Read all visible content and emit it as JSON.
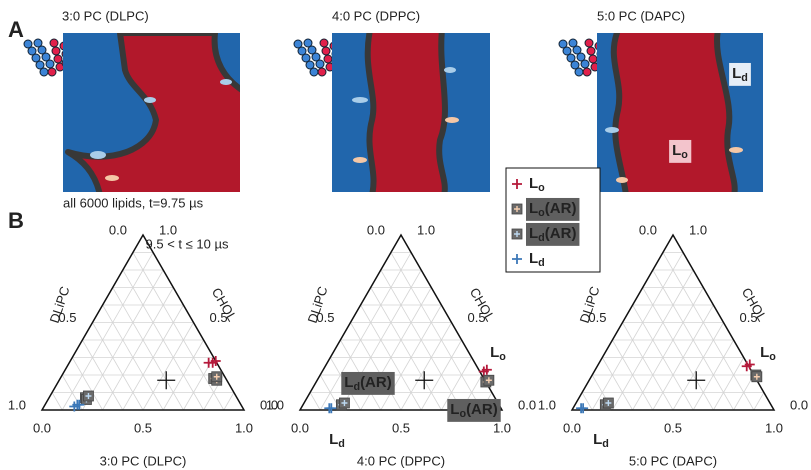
{
  "panels": {
    "a": "A",
    "b": "B"
  },
  "snapshots": [
    {
      "title": "3:0 PC (DLPC)",
      "caption": "all 6000 lipids, t=9.75 µs"
    },
    {
      "title": "4:0 PC (DPPC)"
    },
    {
      "title": "5:0 PC (DAPC)",
      "labels": [
        {
          "text": "Ld",
          "color": "#3c78b8",
          "background": "#e6eef7"
        },
        {
          "text": "Lo",
          "color": "#c2185b",
          "background": "#f3c4cc"
        }
      ]
    }
  ],
  "chart_data": [
    {
      "type": "ternary",
      "title": "3:0 PC (DLPC)",
      "left_label": "DLiPC",
      "right_label": "CHOL",
      "grid": true,
      "left_ticks": [
        {
          "value": 0,
          "label": "0.0"
        },
        {
          "value": 0.5,
          "label": "0.5"
        },
        {
          "value": 1,
          "label": "1.0"
        }
      ],
      "right_ticks": [
        {
          "value": 1,
          "label": "1.0"
        },
        {
          "value": 0.5,
          "label": "0.5"
        },
        {
          "value": 0,
          "label": "0.0"
        }
      ],
      "bottom_ticks": [
        {
          "value": 0,
          "label": "0.0"
        },
        {
          "value": 0.5,
          "label": "0.5"
        },
        {
          "value": 1,
          "label": "1.0"
        }
      ],
      "series": [
        {
          "name": "Lo",
          "color": "#b5193a",
          "marker": "plus",
          "pc": [
            0.69,
            0.71,
            0.72
          ],
          "chol": [
            0.27,
            0.27,
            0.28
          ]
        },
        {
          "name": "Lo(AR)",
          "color": "#f7cfb0",
          "marker": "box",
          "pc": [
            0.76,
            0.78,
            0.77
          ],
          "chol": [
            0.18,
            0.17,
            0.19
          ]
        },
        {
          "name": "Ld(AR)",
          "color": "#bcd8f0",
          "marker": "box",
          "pc": [
            0.18,
            0.19,
            0.19
          ],
          "chol": [
            0.07,
            0.06,
            0.08
          ]
        },
        {
          "name": "Ld",
          "color": "#3c78b8",
          "marker": "plus",
          "pc": [
            0.15,
            0.16,
            0.17
          ],
          "chol": [
            0.02,
            0.03,
            0.03
          ]
        }
      ],
      "reference": {
        "pc": 0.53,
        "chol": 0.17
      },
      "annotations": [
        {
          "text": "9.5 < t ≤ 10 µs",
          "style": "plain",
          "color": "#222"
        }
      ]
    },
    {
      "type": "ternary",
      "title": "4:0 PC (DPPC)",
      "grid": true,
      "left_ticks": [
        {
          "value": 0,
          "label": "0.0"
        },
        {
          "value": 0.5,
          "label": "0.5"
        },
        {
          "value": 1,
          "label": "1.0"
        }
      ],
      "right_ticks": [
        {
          "value": 1,
          "label": "1.0"
        },
        {
          "value": 0.5,
          "label": "0.5"
        },
        {
          "value": 0,
          "label": "0.0"
        }
      ],
      "bottom_ticks": [
        {
          "value": 0,
          "label": "0.0"
        },
        {
          "value": 0.5,
          "label": "0.5"
        },
        {
          "value": 1,
          "label": "1.0"
        }
      ],
      "left_label": "DLiPC",
      "right_label": "CHOL",
      "series": [
        {
          "name": "Lo",
          "color": "#b5193a",
          "marker": "plus",
          "pc": [
            0.8,
            0.81
          ],
          "chol": [
            0.22,
            0.23
          ]
        },
        {
          "name": "Lo(AR)",
          "color": "#f7cfb0",
          "marker": "box",
          "pc": [
            0.84,
            0.85
          ],
          "chol": [
            0.16,
            0.17
          ]
        },
        {
          "name": "Ld(AR)",
          "color": "#bcd8f0",
          "marker": "box",
          "pc": [
            0.19,
            0.2
          ],
          "chol": [
            0.03,
            0.04
          ]
        },
        {
          "name": "Ld",
          "color": "#3c78b8",
          "marker": "plus",
          "pc": [
            0.14,
            0.15
          ],
          "chol": [
            0.01,
            0.01
          ]
        }
      ],
      "reference": {
        "pc": 0.53,
        "chol": 0.17
      },
      "annotations": [
        {
          "text": "Lo",
          "style": "plain",
          "color": "#b5193a"
        },
        {
          "text": "Ld(AR)",
          "style": "box",
          "color": "#bcd8f0"
        },
        {
          "text": "Lo(AR)",
          "style": "box",
          "color": "#f7cfb0"
        },
        {
          "text": "Ld",
          "style": "plain",
          "color": "#3c78b8"
        }
      ]
    },
    {
      "type": "ternary",
      "title": "5:0 PC (DAPC)",
      "grid": true,
      "left_ticks": [
        {
          "value": 0,
          "label": "0.0"
        },
        {
          "value": 0.5,
          "label": "0.5"
        },
        {
          "value": 1,
          "label": "1.0"
        }
      ],
      "right_ticks": [
        {
          "value": 1,
          "label": "1.0"
        },
        {
          "value": 0.5,
          "label": "0.5"
        },
        {
          "value": 0,
          "label": "0.0"
        }
      ],
      "bottom_ticks": [
        {
          "value": 0,
          "label": "0.0"
        },
        {
          "value": 0.5,
          "label": "0.5"
        },
        {
          "value": 1,
          "label": "1.0"
        }
      ],
      "left_label": "DLiPC",
      "right_label": "CHOL",
      "series": [
        {
          "name": "Lo",
          "color": "#b5193a",
          "marker": "plus",
          "pc": [
            0.74,
            0.75
          ],
          "chol": [
            0.25,
            0.26
          ]
        },
        {
          "name": "Lo(AR)",
          "color": "#f7cfb0",
          "marker": "box",
          "pc": [
            0.81,
            0.82
          ],
          "chol": [
            0.2,
            0.19
          ]
        },
        {
          "name": "Ld(AR)",
          "color": "#bcd8f0",
          "marker": "box",
          "pc": [
            0.15,
            0.16
          ],
          "chol": [
            0.03,
            0.04
          ]
        },
        {
          "name": "Ld",
          "color": "#3c78b8",
          "marker": "plus",
          "pc": [
            0.04,
            0.05
          ],
          "chol": [
            0.01,
            0.01
          ]
        }
      ],
      "reference": {
        "pc": 0.53,
        "chol": 0.17
      },
      "annotations": [
        {
          "text": "Lo",
          "style": "plain",
          "color": "#b5193a"
        },
        {
          "text": "Ld",
          "style": "plain",
          "color": "#3c78b8"
        }
      ]
    }
  ]
}
